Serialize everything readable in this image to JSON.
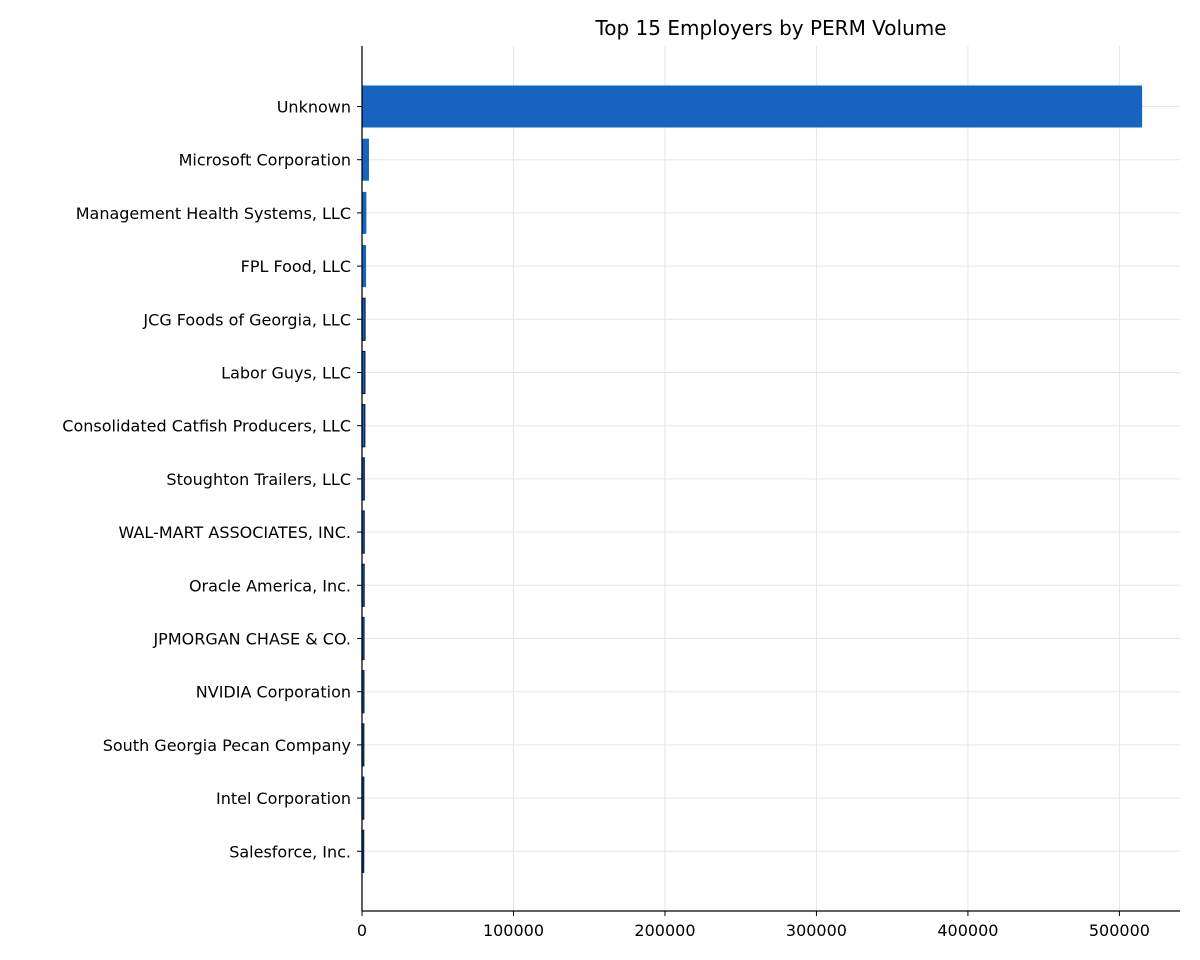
{
  "chart_data": {
    "type": "bar",
    "orientation": "horizontal",
    "title": "Top 15 Employers by PERM Volume",
    "xlabel": "",
    "ylabel": "",
    "categories": [
      "Unknown",
      "Microsoft Corporation",
      "Management Health Systems, LLC",
      "FPL Food, LLC",
      "JCG Foods of Georgia, LLC",
      "Labor Guys, LLC",
      "Consolidated Catfish Producers, LLC",
      "Stoughton Trailers, LLC",
      "WAL-MART ASSOCIATES, INC.",
      "Oracle America, Inc.",
      "JPMORGAN CHASE & CO.",
      "NVIDIA Corporation",
      "South Georgia Pecan Company",
      "Intel Corporation",
      "Salesforce, Inc."
    ],
    "values": [
      515000,
      4600,
      2900,
      2700,
      2000,
      1900,
      1850,
      1500,
      1450,
      1400,
      1300,
      1250,
      1200,
      1150,
      1100
    ],
    "xlim": [
      0,
      540000
    ],
    "xticks": [
      0,
      100000,
      200000,
      300000,
      400000,
      500000
    ],
    "xtick_labels": [
      "0",
      "100000",
      "200000",
      "300000",
      "400000",
      "500000"
    ],
    "grid": true,
    "bar_color": "#1565c0",
    "bar_edge_color": "#0d1b4a"
  }
}
